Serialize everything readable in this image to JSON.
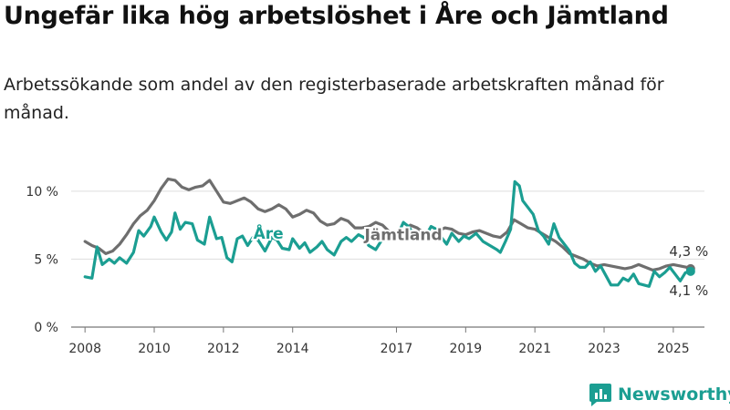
{
  "title": "Ungefär lika hög arbetslöshet i Åre och Jämtland",
  "subtitle": "Arbetssökande som andel av den registerbaserade arbetskraften månad för månad.",
  "brand": {
    "name": "Newsworthy",
    "color": "#1b9e92"
  },
  "chart_data": {
    "type": "line",
    "xlabel": "",
    "ylabel": "",
    "ylim": [
      0,
      12
    ],
    "xlim": [
      2007.6,
      2025.9
    ],
    "yticks": [
      {
        "value": 0,
        "label": "0 %"
      },
      {
        "value": 5,
        "label": "5 %"
      },
      {
        "value": 10,
        "label": "10 %"
      }
    ],
    "xticks": [
      "2008",
      "2010",
      "2012",
      "2014",
      "2017",
      "2019",
      "2021",
      "2023",
      "2025"
    ],
    "grid": "horizontal",
    "end_labels": [
      {
        "text": "4,3 %",
        "series": "Jämtland",
        "position": "above"
      },
      {
        "text": "4,1 %",
        "series": "Åre",
        "position": "below"
      }
    ],
    "series": [
      {
        "name": "Jämtland",
        "color": "#6e6e6e",
        "label_at": [
          2017.2,
          6.4
        ],
        "points": [
          [
            2008.0,
            6.3
          ],
          [
            2008.2,
            6.0
          ],
          [
            2008.4,
            5.8
          ],
          [
            2008.6,
            5.4
          ],
          [
            2008.8,
            5.6
          ],
          [
            2009.0,
            6.1
          ],
          [
            2009.2,
            6.8
          ],
          [
            2009.4,
            7.6
          ],
          [
            2009.6,
            8.2
          ],
          [
            2009.8,
            8.6
          ],
          [
            2010.0,
            9.3
          ],
          [
            2010.2,
            10.2
          ],
          [
            2010.4,
            10.9
          ],
          [
            2010.6,
            10.8
          ],
          [
            2010.8,
            10.3
          ],
          [
            2011.0,
            10.1
          ],
          [
            2011.2,
            10.3
          ],
          [
            2011.4,
            10.4
          ],
          [
            2011.6,
            10.8
          ],
          [
            2011.8,
            10.0
          ],
          [
            2012.0,
            9.2
          ],
          [
            2012.2,
            9.1
          ],
          [
            2012.4,
            9.3
          ],
          [
            2012.6,
            9.5
          ],
          [
            2012.8,
            9.2
          ],
          [
            2013.0,
            8.7
          ],
          [
            2013.2,
            8.5
          ],
          [
            2013.4,
            8.7
          ],
          [
            2013.6,
            9.0
          ],
          [
            2013.8,
            8.7
          ],
          [
            2014.0,
            8.1
          ],
          [
            2014.2,
            8.3
          ],
          [
            2014.4,
            8.6
          ],
          [
            2014.6,
            8.4
          ],
          [
            2014.8,
            7.8
          ],
          [
            2015.0,
            7.5
          ],
          [
            2015.2,
            7.6
          ],
          [
            2015.4,
            8.0
          ],
          [
            2015.6,
            7.8
          ],
          [
            2015.8,
            7.3
          ],
          [
            2016.0,
            7.3
          ],
          [
            2016.2,
            7.4
          ],
          [
            2016.4,
            7.7
          ],
          [
            2016.6,
            7.5
          ],
          [
            2016.8,
            7.0
          ],
          [
            2017.0,
            6.9
          ],
          [
            2017.2,
            7.0
          ],
          [
            2017.4,
            7.5
          ],
          [
            2017.6,
            7.3
          ],
          [
            2017.8,
            6.9
          ],
          [
            2018.0,
            6.9
          ],
          [
            2018.2,
            7.1
          ],
          [
            2018.4,
            7.3
          ],
          [
            2018.6,
            7.2
          ],
          [
            2018.8,
            6.9
          ],
          [
            2019.0,
            6.8
          ],
          [
            2019.2,
            7.0
          ],
          [
            2019.4,
            7.1
          ],
          [
            2019.6,
            6.9
          ],
          [
            2019.8,
            6.7
          ],
          [
            2020.0,
            6.6
          ],
          [
            2020.2,
            7.0
          ],
          [
            2020.4,
            7.9
          ],
          [
            2020.6,
            7.6
          ],
          [
            2020.8,
            7.3
          ],
          [
            2021.0,
            7.2
          ],
          [
            2021.2,
            6.9
          ],
          [
            2021.4,
            6.6
          ],
          [
            2021.6,
            6.3
          ],
          [
            2021.8,
            5.9
          ],
          [
            2022.0,
            5.4
          ],
          [
            2022.2,
            5.2
          ],
          [
            2022.4,
            5.0
          ],
          [
            2022.6,
            4.7
          ],
          [
            2022.8,
            4.5
          ],
          [
            2023.0,
            4.6
          ],
          [
            2023.2,
            4.5
          ],
          [
            2023.4,
            4.4
          ],
          [
            2023.6,
            4.3
          ],
          [
            2023.8,
            4.4
          ],
          [
            2024.0,
            4.6
          ],
          [
            2024.2,
            4.4
          ],
          [
            2024.4,
            4.2
          ],
          [
            2024.6,
            4.3
          ],
          [
            2024.8,
            4.5
          ],
          [
            2025.0,
            4.6
          ],
          [
            2025.2,
            4.5
          ],
          [
            2025.4,
            4.4
          ],
          [
            2025.5,
            4.3
          ]
        ]
      },
      {
        "name": "Åre",
        "color": "#1b9e92",
        "label_at": [
          2013.3,
          6.5
        ],
        "points": [
          [
            2008.0,
            3.7
          ],
          [
            2008.2,
            3.6
          ],
          [
            2008.35,
            5.9
          ],
          [
            2008.5,
            4.6
          ],
          [
            2008.7,
            5.0
          ],
          [
            2008.85,
            4.7
          ],
          [
            2009.0,
            5.1
          ],
          [
            2009.2,
            4.7
          ],
          [
            2009.4,
            5.5
          ],
          [
            2009.55,
            7.1
          ],
          [
            2009.7,
            6.7
          ],
          [
            2009.9,
            7.4
          ],
          [
            2010.0,
            8.1
          ],
          [
            2010.2,
            7.0
          ],
          [
            2010.35,
            6.4
          ],
          [
            2010.5,
            7.0
          ],
          [
            2010.6,
            8.4
          ],
          [
            2010.75,
            7.2
          ],
          [
            2010.9,
            7.7
          ],
          [
            2011.1,
            7.6
          ],
          [
            2011.25,
            6.4
          ],
          [
            2011.45,
            6.1
          ],
          [
            2011.6,
            8.1
          ],
          [
            2011.8,
            6.5
          ],
          [
            2011.95,
            6.6
          ],
          [
            2012.1,
            5.1
          ],
          [
            2012.25,
            4.8
          ],
          [
            2012.4,
            6.5
          ],
          [
            2012.55,
            6.7
          ],
          [
            2012.7,
            6.0
          ],
          [
            2012.85,
            6.6
          ],
          [
            2013.0,
            6.4
          ],
          [
            2013.2,
            5.6
          ],
          [
            2013.4,
            6.6
          ],
          [
            2013.55,
            6.4
          ],
          [
            2013.7,
            5.8
          ],
          [
            2013.9,
            5.7
          ],
          [
            2014.0,
            6.5
          ],
          [
            2014.2,
            5.8
          ],
          [
            2014.35,
            6.2
          ],
          [
            2014.5,
            5.5
          ],
          [
            2014.7,
            5.9
          ],
          [
            2014.85,
            6.3
          ],
          [
            2015.0,
            5.7
          ],
          [
            2015.2,
            5.3
          ],
          [
            2015.4,
            6.3
          ],
          [
            2015.55,
            6.6
          ],
          [
            2015.7,
            6.3
          ],
          [
            2015.9,
            6.8
          ],
          [
            2016.05,
            6.6
          ],
          [
            2016.2,
            6.0
          ],
          [
            2016.4,
            5.7
          ],
          [
            2016.55,
            6.3
          ],
          [
            2016.7,
            6.7
          ],
          [
            2016.85,
            6.4
          ],
          [
            2017.0,
            6.6
          ],
          [
            2017.2,
            7.7
          ],
          [
            2017.35,
            7.4
          ],
          [
            2017.5,
            6.8
          ],
          [
            2017.65,
            6.7
          ],
          [
            2017.8,
            6.5
          ],
          [
            2018.0,
            7.4
          ],
          [
            2018.15,
            7.2
          ],
          [
            2018.3,
            6.6
          ],
          [
            2018.45,
            6.1
          ],
          [
            2018.6,
            6.9
          ],
          [
            2018.8,
            6.3
          ],
          [
            2018.95,
            6.7
          ],
          [
            2019.1,
            6.5
          ],
          [
            2019.3,
            6.9
          ],
          [
            2019.5,
            6.3
          ],
          [
            2019.7,
            6.0
          ],
          [
            2019.9,
            5.7
          ],
          [
            2020.0,
            5.5
          ],
          [
            2020.15,
            6.3
          ],
          [
            2020.3,
            7.2
          ],
          [
            2020.42,
            10.7
          ],
          [
            2020.55,
            10.4
          ],
          [
            2020.65,
            9.3
          ],
          [
            2020.8,
            8.8
          ],
          [
            2020.95,
            8.3
          ],
          [
            2021.1,
            7.1
          ],
          [
            2021.25,
            6.7
          ],
          [
            2021.4,
            6.1
          ],
          [
            2021.55,
            7.6
          ],
          [
            2021.7,
            6.6
          ],
          [
            2021.85,
            6.1
          ],
          [
            2022.0,
            5.6
          ],
          [
            2022.15,
            4.7
          ],
          [
            2022.3,
            4.4
          ],
          [
            2022.45,
            4.4
          ],
          [
            2022.6,
            4.8
          ],
          [
            2022.75,
            4.1
          ],
          [
            2022.9,
            4.5
          ],
          [
            2023.05,
            3.8
          ],
          [
            2023.2,
            3.1
          ],
          [
            2023.4,
            3.1
          ],
          [
            2023.55,
            3.6
          ],
          [
            2023.7,
            3.4
          ],
          [
            2023.85,
            3.9
          ],
          [
            2024.0,
            3.2
          ],
          [
            2024.15,
            3.1
          ],
          [
            2024.3,
            3.0
          ],
          [
            2024.45,
            4.1
          ],
          [
            2024.6,
            3.7
          ],
          [
            2024.75,
            4.0
          ],
          [
            2024.9,
            4.4
          ],
          [
            2025.05,
            3.9
          ],
          [
            2025.2,
            3.4
          ],
          [
            2025.35,
            4.0
          ],
          [
            2025.5,
            4.1
          ]
        ]
      }
    ]
  }
}
